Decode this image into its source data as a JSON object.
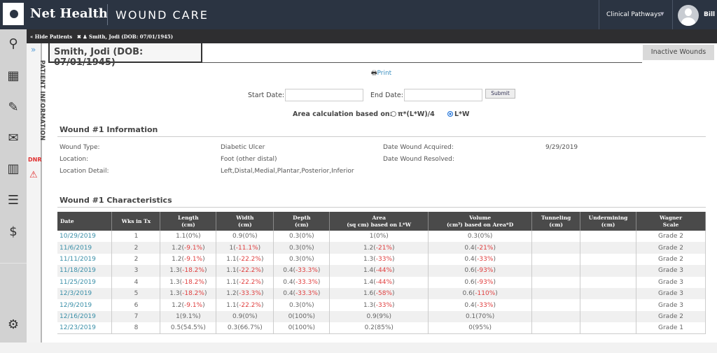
{
  "header": {
    "brand": "Net Health",
    "product": "WOUND CARE",
    "clinical_pathways": "Clinical Pathways",
    "user": "Bill B"
  },
  "subbar": {
    "hide_patients": "« Hide Patients",
    "patient_tab": "✖ ♟ Smith, Jodi (DOB: 07/01/1945)"
  },
  "sidebar": {
    "icons": [
      "search-icon",
      "calendar-icon",
      "clipboard-edit-icon",
      "mail-icon",
      "chart-icon",
      "list-icon",
      "dollar-icon",
      "gear-icon"
    ],
    "strip_label": "PATIENT INFORMATION",
    "dnr": "DNR"
  },
  "patient": {
    "title": "Smith, Jodi (DOB: 07/01/1945)"
  },
  "inactive_wounds": "Inactive Wounds",
  "print": "Print",
  "filters": {
    "start_label": "Start Date:",
    "start_value": "",
    "end_label": "End Date:",
    "end_value": "",
    "submit": "Submit",
    "area_label": "Area calculation based on:",
    "option1": "π*(L*W)/4",
    "option2": "L*W",
    "selected": "L*W"
  },
  "info": {
    "title": "Wound #1 Information",
    "fields": [
      {
        "label": "Wound Type:",
        "value": "Diabetic Ulcer"
      },
      {
        "label": "Location:",
        "value": "Foot (other distal)"
      },
      {
        "label": "Location Detail:",
        "value": "Left,Distal,Medial,Plantar,Posterior,Inferior"
      },
      {
        "label": "Date Wound Acquired:",
        "value": "9/29/2019"
      },
      {
        "label": "Date Wound Resolved:",
        "value": ""
      }
    ]
  },
  "characteristics": {
    "title": "Wound #1 Characteristics",
    "columns": [
      "Date",
      "Wks in Tx",
      "Length (cm)",
      "Width (cm)",
      "Depth (cm)",
      "Area (sq cm) based on L*W",
      "Volume (cm³) based on Area*D",
      "Tunneling (cm)",
      "Undermining (cm)",
      "Wagner Scale"
    ],
    "rows": [
      [
        "10/29/2019",
        "1",
        "1.1(0%)",
        "0.9(0%)",
        "0.3(0%)",
        "1(0%)",
        "0.3(0%)",
        "",
        "",
        "Grade 2"
      ],
      [
        "11/6/2019",
        "2",
        "1.2(-9.1%)",
        "1(-11.1%)",
        "0.3(0%)",
        "1.2(-21%)",
        "0.4(-21%)",
        "",
        "",
        "Grade 2"
      ],
      [
        "11/11/2019",
        "2",
        "1.2(-9.1%)",
        "1.1(-22.2%)",
        "0.3(0%)",
        "1.3(-33%)",
        "0.4(-33%)",
        "",
        "",
        "Grade 2"
      ],
      [
        "11/18/2019",
        "3",
        "1.3(-18.2%)",
        "1.1(-22.2%)",
        "0.4(-33.3%)",
        "1.4(-44%)",
        "0.6(-93%)",
        "",
        "",
        "Grade 3"
      ],
      [
        "11/25/2019",
        "4",
        "1.3(-18.2%)",
        "1.1(-22.2%)",
        "0.4(-33.3%)",
        "1.4(-44%)",
        "0.6(-93%)",
        "",
        "",
        "Grade 3"
      ],
      [
        "12/3/2019",
        "5",
        "1.3(-18.2%)",
        "1.2(-33.3%)",
        "0.4(-33.3%)",
        "1.6(-58%)",
        "0.6(-110%)",
        "",
        "",
        "Grade 3"
      ],
      [
        "12/9/2019",
        "6",
        "1.2(-9.1%)",
        "1.1(-22.2%)",
        "0.3(0%)",
        "1.3(-33%)",
        "0.4(-33%)",
        "",
        "",
        "Grade 3"
      ],
      [
        "12/16/2019",
        "7",
        "1(9.1%)",
        "0.9(0%)",
        "0(100%)",
        "0.9(9%)",
        "0.1(70%)",
        "",
        "",
        "Grade 2"
      ],
      [
        "12/23/2019",
        "8",
        "0.5(54.5%)",
        "0.3(66.7%)",
        "0(100%)",
        "0.2(85%)",
        "0(95%)",
        "",
        "",
        "Grade 1"
      ]
    ]
  },
  "colors": {
    "topbar": "#2b3442",
    "link": "#3a8fa8",
    "negative": "#e04040"
  }
}
